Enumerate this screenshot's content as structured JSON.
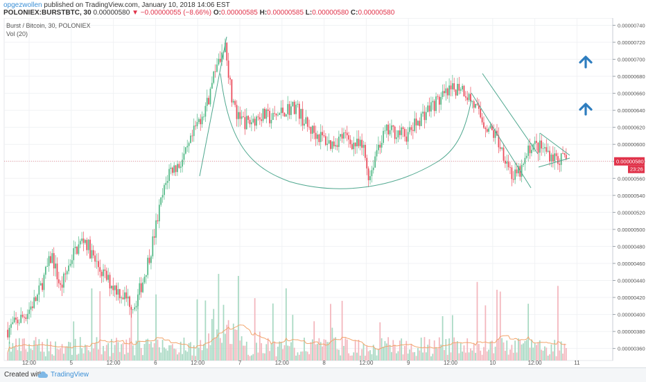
{
  "header": {
    "author": "opgezwollen",
    "published": "published on TradingView.com, January 10, 2018 14:06 EST",
    "symbol": "POLONIEX:BURSTBTC, 30",
    "last": "0.00000580",
    "change_arrow": "▼",
    "change": "−0.00000055 (−8.66%)",
    "o_label": "O:",
    "o": "0.00000585",
    "h_label": "H:",
    "h": "0.00000585",
    "l_label": "L:",
    "l": "0.00000580",
    "c_label": "C:",
    "c": "0.00000580"
  },
  "legend": {
    "line1": "Burst / Bitcoin, 30, POLONIEX",
    "line2": "Vol (20)"
  },
  "footer": {
    "created_with": "Created with",
    "brand": "TradingView",
    "logo_icon": "tradingview-cloud-icon"
  },
  "price_badge": "0.00000580",
  "countdown_badge": "23:26",
  "colors": {
    "up": "#53b987",
    "down": "#eb4d5c",
    "vol_up": "#a8d9c3",
    "vol_down": "#f3b6bd",
    "drawing": "#4ea78e",
    "arrow": "#2e7dbf",
    "price_line": "#e0334a",
    "vol_ma": "#f2a46b"
  },
  "chart_data": {
    "type": "candlestick",
    "symbol": "BURST/BTC",
    "exchange": "POLONIEX",
    "interval": "30",
    "y_ticks": [
      "0.00000740",
      "0.00000720",
      "0.00000700",
      "0.00000680",
      "0.00000660",
      "0.00000640",
      "0.00000620",
      "0.00000600",
      "0.00000580",
      "0.00000560",
      "0.00000540",
      "0.00000520",
      "0.00000500",
      "0.00000480",
      "0.00000460",
      "0.00000440",
      "0.00000420",
      "0.00000400",
      "0.00000380",
      "0.00000360"
    ],
    "ylim": [
      3.54e-06,
      7.42e-06
    ],
    "x_ticks": [
      "12:00",
      "5",
      "12:00",
      "6",
      "12:00",
      "7",
      "12:00",
      "8",
      "12:00",
      "9",
      "12:00",
      "10",
      "12:00",
      "11"
    ],
    "last_price": 5.8e-06,
    "price_path": [
      [
        0,
        3.82e-06
      ],
      [
        0.03,
        4e-06
      ],
      [
        0.05,
        4.2e-06
      ],
      [
        0.075,
        4.7e-06
      ],
      [
        0.09,
        4.3e-06
      ],
      [
        0.11,
        4.7e-06
      ],
      [
        0.13,
        4.9e-06
      ],
      [
        0.15,
        4.6e-06
      ],
      [
        0.17,
        4.4e-06
      ],
      [
        0.185,
        4.3e-06
      ],
      [
        0.2,
        4.2e-06
      ],
      [
        0.215,
        4.1e-06
      ],
      [
        0.23,
        4.4e-06
      ],
      [
        0.245,
        4.8e-06
      ],
      [
        0.26,
        5.3e-06
      ],
      [
        0.275,
        5.7e-06
      ],
      [
        0.29,
        5.75e-06
      ],
      [
        0.305,
        5.9e-06
      ],
      [
        0.32,
        6.2e-06
      ],
      [
        0.34,
        6.5e-06
      ],
      [
        0.355,
        6.9e-06
      ],
      [
        0.37,
        7.2e-06
      ],
      [
        0.38,
        6.6e-06
      ],
      [
        0.39,
        6.3e-06
      ],
      [
        0.41,
        6.25e-06
      ],
      [
        0.43,
        6.35e-06
      ],
      [
        0.45,
        6.3e-06
      ],
      [
        0.47,
        6.4e-06
      ],
      [
        0.49,
        6.45e-06
      ],
      [
        0.51,
        6.2e-06
      ],
      [
        0.53,
        6.1e-06
      ],
      [
        0.55,
        6e-06
      ],
      [
        0.57,
        6.1e-06
      ],
      [
        0.59,
        6e-06
      ],
      [
        0.605,
        5.95e-06
      ],
      [
        0.615,
        5.6e-06
      ],
      [
        0.63,
        6e-06
      ],
      [
        0.645,
        6.15e-06
      ],
      [
        0.66,
        6.15e-06
      ],
      [
        0.68,
        6.1e-06
      ],
      [
        0.7,
        6.3e-06
      ],
      [
        0.72,
        6.45e-06
      ],
      [
        0.74,
        6.55e-06
      ],
      [
        0.76,
        6.65e-06
      ],
      [
        0.77,
        6.7e-06
      ],
      [
        0.79,
        6.5e-06
      ],
      [
        0.81,
        6.25e-06
      ],
      [
        0.83,
        6.1e-06
      ],
      [
        0.85,
        5.8e-06
      ],
      [
        0.86,
        5.6e-06
      ],
      [
        0.875,
        5.7e-06
      ],
      [
        0.89,
        6e-06
      ],
      [
        0.91,
        5.95e-06
      ],
      [
        0.93,
        5.85e-06
      ],
      [
        0.95,
        5.8e-06
      ]
    ]
  }
}
